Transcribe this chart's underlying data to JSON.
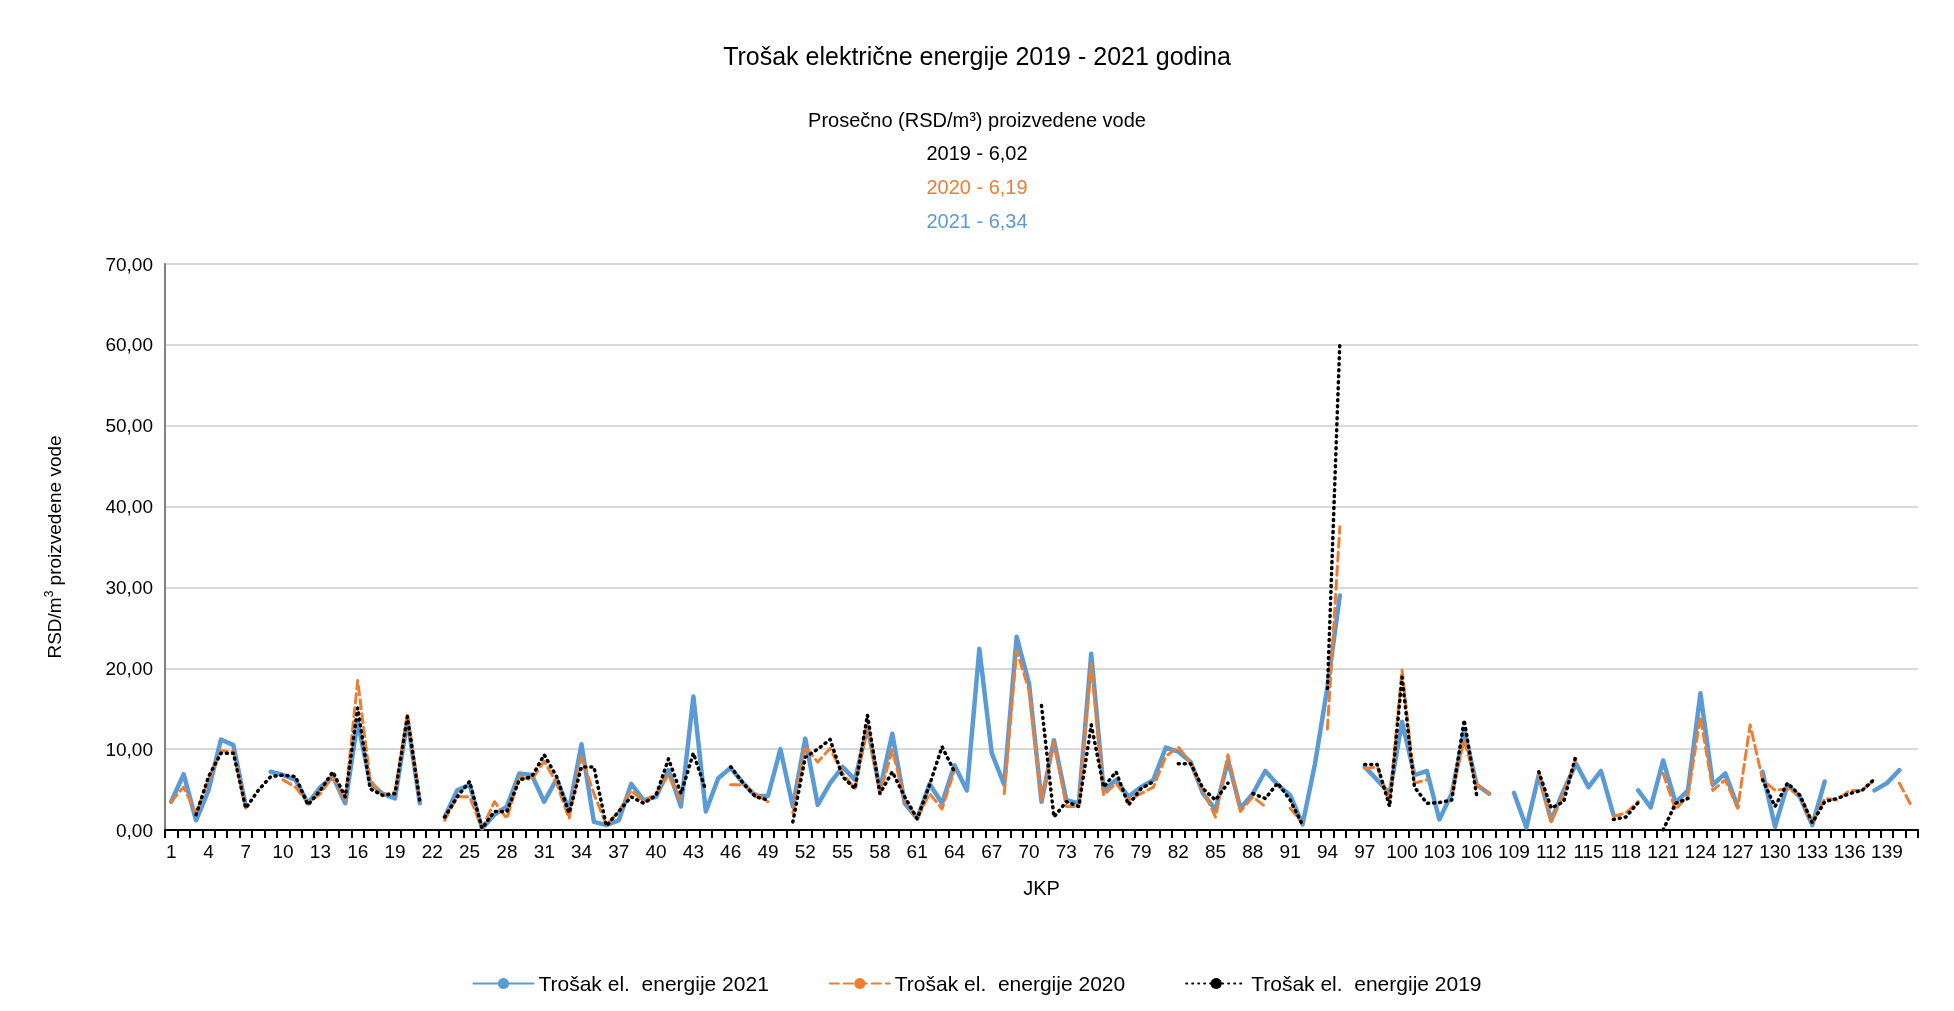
{
  "chart_data": {
    "type": "line",
    "title": "Trošak električne energije 2019 - 2021 godina",
    "subtitle": "Prosečno (RSD/m³) proizvedene vode",
    "annotations": [
      "2019 - 6,02",
      "2020 - 6,19",
      "2021 - 6,34"
    ],
    "xlabel": "JKP",
    "ylabel": "RSD/m$^{3}$ proizvedene vode",
    "categories": [
      "1",
      null,
      null,
      "4",
      null,
      null,
      "7",
      null,
      null,
      "10",
      null,
      null,
      "13",
      null,
      null,
      "16",
      null,
      null,
      "19",
      null,
      null,
      "22",
      null,
      null,
      "25",
      null,
      null,
      "28",
      null,
      null,
      "31",
      null,
      null,
      "34",
      null,
      null,
      "37",
      null,
      null,
      "40",
      null,
      null,
      "43",
      null,
      null,
      "46",
      null,
      null,
      "49",
      null,
      null,
      "52",
      null,
      null,
      "55",
      null,
      null,
      "58",
      null,
      null,
      "61",
      null,
      null,
      "64",
      null,
      null,
      "67",
      null,
      null,
      "70",
      null,
      null,
      "73",
      null,
      null,
      "76",
      null,
      null,
      "79",
      null,
      null,
      "82",
      null,
      null,
      "85",
      null,
      null,
      "88",
      null,
      null,
      "91",
      null,
      null,
      "94",
      null,
      null,
      "97",
      null,
      null,
      "100",
      null,
      null,
      "103",
      null,
      null,
      "106",
      null,
      null,
      "109",
      null,
      null,
      "112",
      null,
      null,
      "115",
      null,
      null,
      "118",
      null,
      null,
      "121",
      null,
      null,
      "124",
      null,
      null,
      "127",
      null,
      null,
      "130",
      null,
      null,
      "133",
      null,
      null,
      "136",
      null,
      null,
      "139",
      null,
      null
    ],
    "series": [
      {
        "name": "Trošak el.  energije 2021",
        "color": "#5b9bd5",
        "line_style": "solid",
        "values": [
          3.5,
          6.9,
          1.2,
          4.9,
          11.2,
          10.5,
          2.9,
          null,
          7.2,
          6.8,
          6.2,
          3.3,
          5.3,
          6.6,
          3.3,
          13.4,
          5.8,
          4.5,
          3.9,
          13.6,
          3.3,
          null,
          1.6,
          4.9,
          5.6,
          0.2,
          1.9,
          2.9,
          7.0,
          6.8,
          3.5,
          6.3,
          2.5,
          10.6,
          1.0,
          0.6,
          1.2,
          5.7,
          3.7,
          4.1,
          7.4,
          2.9,
          16.5,
          2.3,
          6.4,
          7.7,
          5.8,
          4.2,
          4.2,
          10.0,
          2.9,
          11.3,
          3.1,
          5.8,
          7.8,
          6.2,
          12.8,
          5.0,
          11.9,
          3.3,
          1.4,
          5.7,
          3.3,
          8.0,
          4.9,
          22.4,
          9.5,
          5.6,
          23.9,
          18.1,
          3.5,
          11.1,
          3.7,
          3.3,
          21.8,
          4.9,
          6.2,
          4.1,
          5.3,
          6.2,
          10.2,
          9.7,
          8.4,
          4.5,
          2.5,
          8.6,
          2.7,
          4.5,
          7.3,
          5.6,
          4.3,
          0.7,
          8.2,
          17.7,
          29.0,
          null,
          7.8,
          6.2,
          4.5,
          13.4,
          6.8,
          7.3,
          1.3,
          4.5,
          12.3,
          5.6,
          4.5,
          null,
          4.6,
          0.3,
          6.8,
          1.2,
          4.9,
          8.2,
          5.3,
          7.3,
          1.9,
          null,
          4.9,
          2.8,
          8.6,
          3.4,
          4.9,
          16.9,
          5.6,
          7.0,
          2.9,
          null,
          7.2,
          0.4,
          5.6,
          4.1,
          0.6,
          6.0,
          null,
          null,
          null,
          4.9,
          5.8,
          7.4,
          null
        ]
      },
      {
        "name": "Trošak el.  energije 2020",
        "color": "#ed7d31",
        "line_style": "dashed",
        "values": [
          3.5,
          5.3,
          2.1,
          6.2,
          9.8,
          9.7,
          2.7,
          null,
          null,
          6.2,
          5.3,
          3.3,
          4.5,
          6.6,
          3.7,
          18.5,
          6.2,
          4.3,
          4.7,
          14.4,
          3.7,
          null,
          1.2,
          4.1,
          4.1,
          0.2,
          3.5,
          1.4,
          6.6,
          6.2,
          8.5,
          5.8,
          1.4,
          9.1,
          4.5,
          0.6,
          2.3,
          4.9,
          3.5,
          4.5,
          6.8,
          3.7,
          null,
          null,
          null,
          5.6,
          5.6,
          4.5,
          3.5,
          null,
          2.1,
          10.3,
          8.4,
          10.1,
          7.0,
          5.1,
          12.8,
          4.5,
          9.9,
          3.7,
          1.4,
          4.5,
          2.6,
          7.4,
          null,
          null,
          null,
          4.5,
          22.2,
          17.3,
          3.7,
          10.9,
          2.9,
          2.9,
          20.6,
          4.3,
          5.8,
          3.7,
          4.5,
          5.3,
          9.1,
          10.3,
          8.2,
          4.9,
          1.6,
          9.3,
          2.3,
          4.1,
          2.9,
          null,
          2.7,
          0.8,
          null,
          12.5,
          37.5,
          null,
          7.6,
          7.8,
          3.5,
          19.8,
          5.8,
          6.2,
          null,
          4.5,
          11.1,
          5.6,
          4.5,
          null,
          null,
          null,
          7.0,
          1.0,
          4.5,
          8.8,
          null,
          null,
          1.7,
          2.1,
          3.5,
          null,
          7.0,
          2.5,
          4.3,
          14.0,
          4.9,
          6.2,
          2.7,
          13.0,
          6.2,
          4.9,
          5.1,
          4.3,
          0.8,
          3.9,
          3.7,
          4.9,
          4.9,
          6.2,
          null,
          5.8,
          2.9
        ]
      },
      {
        "name": "Trošak el.  energije 2019",
        "color": "#000000",
        "line_style": "dotted",
        "values": [
          null,
          null,
          1.9,
          6.6,
          9.5,
          9.5,
          2.7,
          4.9,
          6.6,
          6.8,
          6.6,
          3.1,
          4.9,
          7.2,
          4.1,
          15.1,
          5.1,
          4.3,
          4.5,
          14.0,
          3.5,
          null,
          1.6,
          4.1,
          6.0,
          0.2,
          2.3,
          2.3,
          6.2,
          6.6,
          9.3,
          6.6,
          2.1,
          7.8,
          7.8,
          0.5,
          2.3,
          4.1,
          3.3,
          4.3,
          8.8,
          4.5,
          9.5,
          4.9,
          null,
          7.8,
          5.8,
          4.1,
          3.7,
          null,
          1.0,
          9.0,
          10.0,
          11.2,
          6.6,
          5.1,
          14.2,
          4.5,
          7.2,
          4.1,
          1.4,
          5.6,
          10.3,
          7.2,
          null,
          null,
          null,
          null,
          null,
          null,
          15.4,
          1.6,
          3.5,
          2.9,
          13.0,
          5.3,
          7.2,
          3.1,
          5.1,
          6.0,
          null,
          8.2,
          8.2,
          5.1,
          3.7,
          5.8,
          null,
          4.5,
          3.9,
          5.8,
          3.7,
          0.6,
          null,
          17.5,
          60.5,
          null,
          8.1,
          8.1,
          2.9,
          18.9,
          5.3,
          3.3,
          3.4,
          3.7,
          13.6,
          4.3,
          null,
          null,
          null,
          null,
          7.2,
          2.7,
          3.5,
          9.3,
          null,
          null,
          1.3,
          1.6,
          3.4,
          null,
          0.0,
          3.3,
          3.9,
          null,
          null,
          null,
          null,
          null,
          6.2,
          2.9,
          5.8,
          4.3,
          0.9,
          3.5,
          3.9,
          4.5,
          4.9,
          6.3,
          null,
          null,
          null
        ]
      }
    ],
    "ylim": [
      0,
      70
    ],
    "yticks": [
      {
        "value": 0,
        "label": "0,00"
      },
      {
        "value": 10,
        "label": "10,00"
      },
      {
        "value": 20,
        "label": "20,00"
      },
      {
        "value": 30,
        "label": "30,00"
      },
      {
        "value": 40,
        "label": "40,00"
      },
      {
        "value": 50,
        "label": "50,00"
      },
      {
        "value": 60,
        "label": "60,00"
      },
      {
        "value": 70,
        "label": "70,00"
      }
    ],
    "grid": "y",
    "legend": "bottom",
    "marker": "none"
  }
}
